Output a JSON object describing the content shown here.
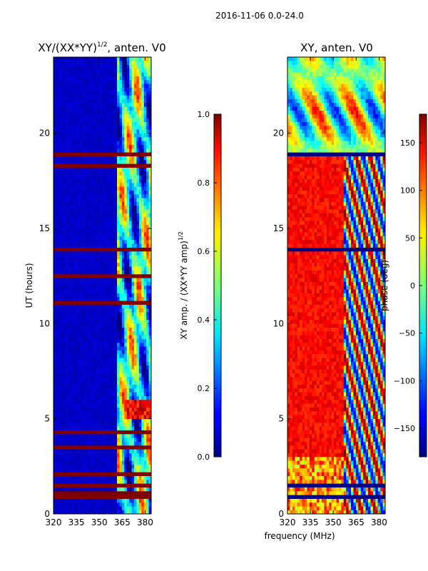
{
  "suptitle": "2016-11-06 0.0-24.0",
  "chart_data": [
    {
      "type": "heatmap",
      "title": "XY/(XX*YY)^1/2, anten. V0",
      "title_main": "XY/(XX*YY)",
      "title_sup": "1/2",
      "title_tail": ", anten. V0",
      "xlabel": "",
      "ylabel": "UT (hours)",
      "xlim": [
        320,
        384
      ],
      "ylim": [
        0,
        24
      ],
      "xticks": [
        320,
        335,
        350,
        365,
        380
      ],
      "yticks": [
        0,
        5,
        10,
        15,
        20
      ],
      "description_cells": "low ratio 320-362 MHz, high variable ratio 362-384 MHz, flagged rows saturated",
      "flagged_hours": [
        0.8,
        1.0,
        1.5,
        2.1,
        3.4,
        4.3,
        11.1,
        12.5,
        13.8,
        18.2,
        18.9
      ],
      "colorbar": {
        "label": "XY amp. / (XX*YY amp)^1/2",
        "label_main": "XY amp. / (XX*YY amp)",
        "label_sup": "1/2",
        "min": 0.0,
        "max": 1.0,
        "ticks": [
          "0.0",
          "0.2",
          "0.4",
          "0.6",
          "0.8",
          "1.0"
        ]
      }
    },
    {
      "type": "heatmap",
      "title": "XY, anten. V0",
      "xlabel": "frequency (MHz)",
      "ylabel": "",
      "xlim": [
        320,
        384
      ],
      "ylim": [
        0,
        24
      ],
      "xticks": [
        320,
        335,
        350,
        365,
        380
      ],
      "yticks": [
        0,
        5,
        10,
        15,
        20
      ],
      "flagged_hours": [
        0.9,
        1.5,
        13.8,
        18.9
      ],
      "colorbar": {
        "label": "phase (deg)",
        "min": -180,
        "max": 180,
        "ticks": [
          "−150",
          "−100",
          "−50",
          "0",
          "50",
          "100",
          "150"
        ]
      }
    }
  ]
}
